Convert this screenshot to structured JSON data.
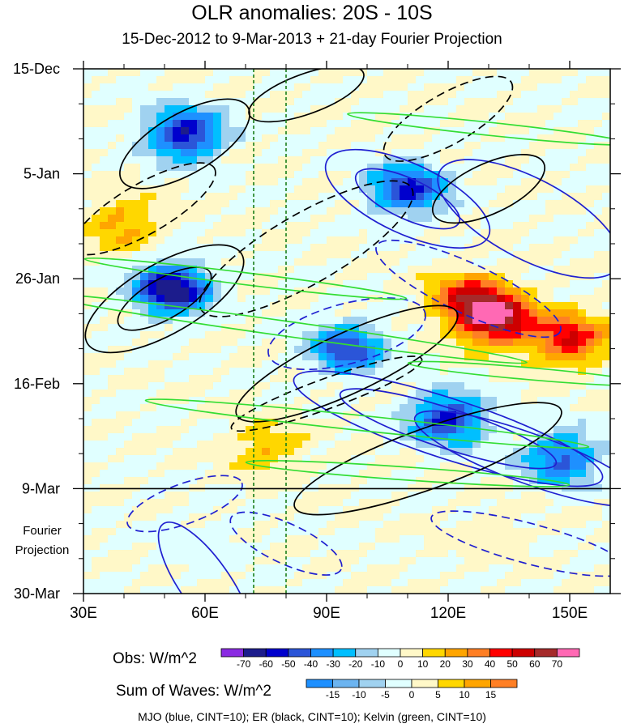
{
  "chart_data": {
    "type": "heatmap",
    "title": "OLR anomalies: 20S - 10S",
    "subtitle": "15-Dec-2012 to 9-Mar-2013 + 21-day Fourier Projection",
    "x_axis": {
      "ticks": [
        30,
        60,
        90,
        120,
        150
      ],
      "tick_labels": [
        "30E",
        "60E",
        "90E",
        "120E",
        "150E"
      ],
      "range": [
        30,
        160
      ]
    },
    "y_axis": {
      "ticks": [
        "2012-12-15",
        "2013-01-05",
        "2013-01-26",
        "2013-02-16",
        "2013-03-09",
        "2013-03-30"
      ],
      "tick_labels": [
        "15-Dec",
        "5-Jan",
        "26-Jan",
        "16-Feb",
        "9-Mar",
        "30-Mar"
      ],
      "range": [
        "2012-12-15",
        "2013-03-30"
      ],
      "inverted": true,
      "forecast_label": [
        "Fourier",
        "Projection"
      ],
      "forecast_start": "2013-03-09"
    },
    "reference_lines_longitude": [
      72,
      80
    ],
    "obs_colorbar": {
      "label": "Obs: W/m^2",
      "levels": [
        -70,
        -60,
        -50,
        -40,
        -30,
        -20,
        -10,
        0,
        10,
        20,
        30,
        40,
        50,
        60,
        70
      ],
      "colors": [
        "#8a2be2",
        "#1c1c8c",
        "#0000cd",
        "#2b55d8",
        "#1e90ff",
        "#00bfff",
        "#a0d2f0",
        "#e0ffff",
        "#fff8c8",
        "#ffd700",
        "#ffa500",
        "#ff7f24",
        "#ff0000",
        "#cd0000",
        "#a52a2a",
        "#ff69b4"
      ]
    },
    "waves_colorbar": {
      "label": "Sum of Waves: W/m^2",
      "levels": [
        -15,
        -10,
        -5,
        0,
        5,
        10,
        15
      ],
      "colors": [
        "#1e90ff",
        "#6cb4f0",
        "#a0d2f0",
        "#e0ffff",
        "#fff8c8",
        "#ffd700",
        "#ffa500",
        "#ff7f24"
      ]
    },
    "contours": [
      {
        "name": "MJO",
        "color": "#1f1fd0",
        "cint": 10
      },
      {
        "name": "ER",
        "color": "#000000",
        "cint": 10
      },
      {
        "name": "Kelvin",
        "color": "#33dd33",
        "cint": 10
      }
    ],
    "anomaly_features": [
      {
        "lon": 55,
        "date": "2012-12-28",
        "value": -60
      },
      {
        "lon": 110,
        "date": "2013-01-08",
        "value": -55
      },
      {
        "lon": 52,
        "date": "2013-01-28",
        "value": -70
      },
      {
        "lon": 125,
        "date": "2013-01-30",
        "value": 45
      },
      {
        "lon": 132,
        "date": "2013-02-03",
        "value": 70
      },
      {
        "lon": 150,
        "date": "2013-02-07",
        "value": 50
      },
      {
        "lon": 95,
        "date": "2013-02-09",
        "value": -50
      },
      {
        "lon": 120,
        "date": "2013-02-23",
        "value": -55
      },
      {
        "lon": 148,
        "date": "2013-03-03",
        "value": -45
      },
      {
        "lon": 40,
        "date": "2013-01-15",
        "value": 25
      },
      {
        "lon": 75,
        "date": "2013-03-01",
        "value": 20
      },
      {
        "lon": 130,
        "date": "2013-03-18",
        "value": 10
      },
      {
        "lon": 60,
        "date": "2013-03-20",
        "value": -10
      }
    ]
  },
  "footer": "MJO (blue, CINT=10); ER (black, CINT=10); Kelvin (green, CINT=10)"
}
